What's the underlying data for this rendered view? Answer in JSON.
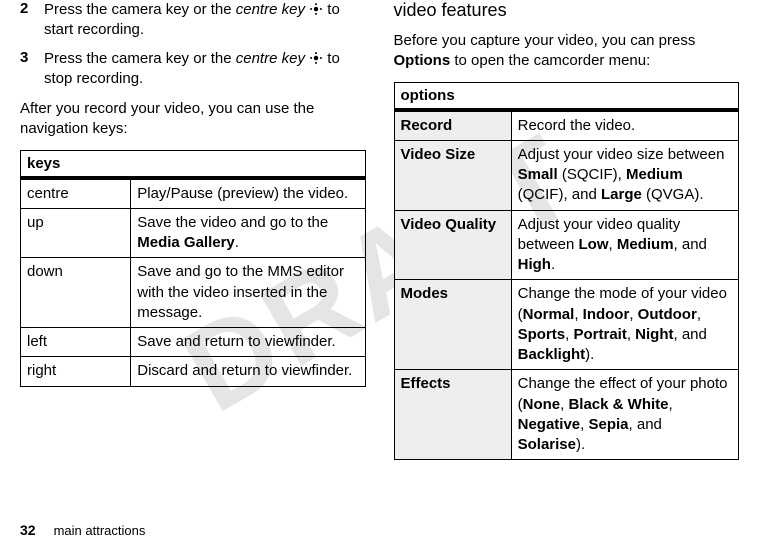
{
  "watermark": "DRAFT",
  "left": {
    "steps": [
      {
        "num": "2",
        "pre": "Press the camera key or the ",
        "italic": "centre key",
        "post": " to start recording."
      },
      {
        "num": "3",
        "pre": "Press the camera key or the ",
        "italic": "centre key",
        "post": " to stop recording."
      }
    ],
    "after": "After you record your video, you can use the navigation keys:",
    "tableHeader": "keys",
    "rows": [
      {
        "k": "centre",
        "v_pre": "Play/Pause (preview) the video.",
        "v_bold": "",
        "v_post": ""
      },
      {
        "k": "up",
        "v_pre": "Save the video and go to the ",
        "v_bold": "Media Gallery",
        "v_post": "."
      },
      {
        "k": "down",
        "v_pre": "Save and go to the MMS editor with the video inserted in the message.",
        "v_bold": "",
        "v_post": ""
      },
      {
        "k": "left",
        "v_pre": "Save and return to viewfinder.",
        "v_bold": "",
        "v_post": ""
      },
      {
        "k": "right",
        "v_pre": "Discard and return to viewfinder.",
        "v_bold": "",
        "v_post": ""
      }
    ]
  },
  "right": {
    "heading": "video features",
    "intro_pre": "Before you capture your video, you can press ",
    "intro_bold": "Options",
    "intro_post": " to open the camcorder menu:",
    "tableHeader": "options",
    "rows": [
      {
        "k": "Record",
        "v": "Record the video."
      },
      {
        "k": "Video Size",
        "v": "Adjust your video size between <b class=\"condensed\">Small</b> (SQCIF), <b class=\"condensed\">Medium</b> (QCIF), and <b class=\"condensed\">Large</b> (QVGA)."
      },
      {
        "k": "Video Quality",
        "v": "Adjust your video quality between <b class=\"condensed\">Low</b>, <b class=\"condensed\">Medium</b>, and <b class=\"condensed\">High</b>."
      },
      {
        "k": "Modes",
        "v": "Change the mode of your video (<b class=\"condensed\">Normal</b>, <b class=\"condensed\">Indoor</b>, <b class=\"condensed\">Outdoor</b>, <b class=\"condensed\">Sports</b>, <b class=\"condensed\">Portrait</b>, <b class=\"condensed\">Night</b>, and <b class=\"condensed\">Backlight</b>)."
      },
      {
        "k": "Effects",
        "v": "Change the effect of your photo (<b class=\"condensed\">None</b>, <b class=\"condensed\">Black & White</b>, <b class=\"condensed\">Negative</b>, <b class=\"condensed\">Sepia</b>, and <b class=\"condensed\">Solarise</b>)."
      }
    ]
  },
  "footer": {
    "page": "32",
    "title": "main attractions"
  },
  "icon_svg": "<svg viewBox='0 0 20 20'><circle cx='10' cy='10' r='3.2' fill='#000'/><circle cx='10' cy='3' r='1.4' fill='#000'/><circle cx='10' cy='17' r='1.4' fill='#000'/><circle cx='3' cy='10' r='1.4' fill='#000'/><circle cx='17' cy='10' r='1.4' fill='#000'/></svg>"
}
